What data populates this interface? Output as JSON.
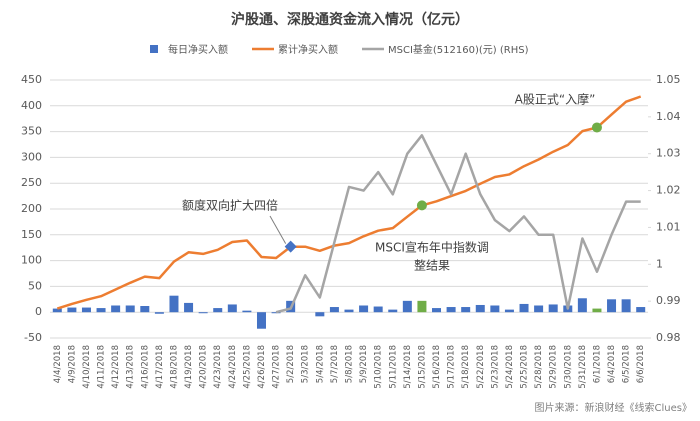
{
  "chart_data": {
    "type": "combo",
    "title": "沪股通、深股通资金流入情况（亿元）",
    "categories": [
      "4/4/2018",
      "4/9/2018",
      "4/10/2018",
      "4/11/2018",
      "4/12/2018",
      "4/13/2018",
      "4/16/2018",
      "4/17/2018",
      "4/18/2018",
      "4/19/2018",
      "4/20/2018",
      "4/23/2018",
      "4/24/2018",
      "4/25/2018",
      "4/26/2018",
      "4/27/2018",
      "5/2/2018",
      "5/3/2018",
      "5/4/2018",
      "5/7/2018",
      "5/8/2018",
      "5/9/2018",
      "5/10/2018",
      "5/11/2018",
      "5/14/2018",
      "5/15/2018",
      "5/16/2018",
      "5/17/2018",
      "5/18/2018",
      "5/22/2018",
      "5/23/2018",
      "5/24/2018",
      "5/25/2018",
      "5/28/2018",
      "5/29/2018",
      "5/30/2018",
      "5/31/2018",
      "6/1/2018",
      "6/4/2018",
      "6/5/2018",
      "6/6/2018"
    ],
    "series": [
      {
        "name": "每日净买入额",
        "type": "bar",
        "color": "#4472c4",
        "colors": [
          "#4472c4",
          "#4472c4",
          "#4472c4",
          "#4472c4",
          "#4472c4",
          "#4472c4",
          "#4472c4",
          "#4472c4",
          "#4472c4",
          "#4472c4",
          "#4472c4",
          "#4472c4",
          "#4472c4",
          "#4472c4",
          "#4472c4",
          "#4472c4",
          "#4472c4",
          "#4472c4",
          "#4472c4",
          "#4472c4",
          "#4472c4",
          "#4472c4",
          "#4472c4",
          "#4472c4",
          "#4472c4",
          "#70ad47",
          "#4472c4",
          "#4472c4",
          "#4472c4",
          "#4472c4",
          "#4472c4",
          "#4472c4",
          "#4472c4",
          "#4472c4",
          "#4472c4",
          "#4472c4",
          "#4472c4",
          "#70ad47",
          "#4472c4",
          "#4472c4",
          "#4472c4"
        ],
        "values": [
          7,
          9,
          9,
          8,
          13,
          13,
          12,
          -3,
          32,
          18,
          -2,
          8,
          15,
          3,
          -32,
          -2,
          22,
          0,
          -8,
          10,
          5,
          13,
          11,
          5,
          22,
          22,
          8,
          10,
          10,
          14,
          13,
          5,
          16,
          13,
          15,
          13,
          27,
          7,
          25,
          25,
          10
        ]
      },
      {
        "name": "累计净买入额",
        "type": "line",
        "color": "#ed7d31",
        "values": [
          7,
          16,
          24,
          31,
          44,
          57,
          69,
          66,
          98,
          116,
          113,
          121,
          136,
          139,
          107,
          105,
          127,
          127,
          119,
          129,
          134,
          147,
          158,
          163,
          185,
          207,
          215,
          225,
          235,
          249,
          262,
          267,
          283,
          296,
          311,
          324,
          351,
          358,
          383,
          408,
          418
        ]
      },
      {
        "name": "MSCI基金(512160)(元) (RHS)",
        "type": "line",
        "color": "#a5a5a5",
        "axis": "y2",
        "values": [
          null,
          null,
          null,
          null,
          null,
          null,
          null,
          null,
          null,
          null,
          null,
          null,
          null,
          null,
          null,
          0.987,
          0.988,
          0.997,
          0.991,
          1.006,
          1.021,
          1.02,
          1.025,
          1.019,
          1.03,
          1.035,
          1.027,
          1.019,
          1.03,
          1.019,
          1.012,
          1.009,
          1.013,
          1.008,
          1.008,
          0.988,
          1.007,
          0.998,
          1.008,
          1.017,
          1.017
        ]
      }
    ],
    "ylim": [
      -50,
      450
    ],
    "yticks": [
      -50,
      0,
      50,
      100,
      150,
      200,
      250,
      300,
      350,
      400,
      450
    ],
    "y2lim": [
      0.98,
      1.05
    ],
    "y2ticks": [
      0.98,
      0.99,
      1,
      1.01,
      1.02,
      1.03,
      1.04,
      1.05
    ],
    "grid": true,
    "legend": "top",
    "annotations": [
      {
        "text": [
          "额度双向扩大四倍"
        ],
        "category": "5/2/2018",
        "marker": "diamond",
        "color": "#4472c4"
      },
      {
        "text": [
          "MSCI宣布年中指数调",
          "整结果"
        ],
        "category": "5/15/2018",
        "marker": "circle",
        "color": "#70ad47"
      },
      {
        "text": [
          "A股正式“入摩”"
        ],
        "category": "6/1/2018",
        "marker": "circle",
        "color": "#70ad47"
      }
    ],
    "source": "图片来源：新浪财经《线索Clues》"
  }
}
